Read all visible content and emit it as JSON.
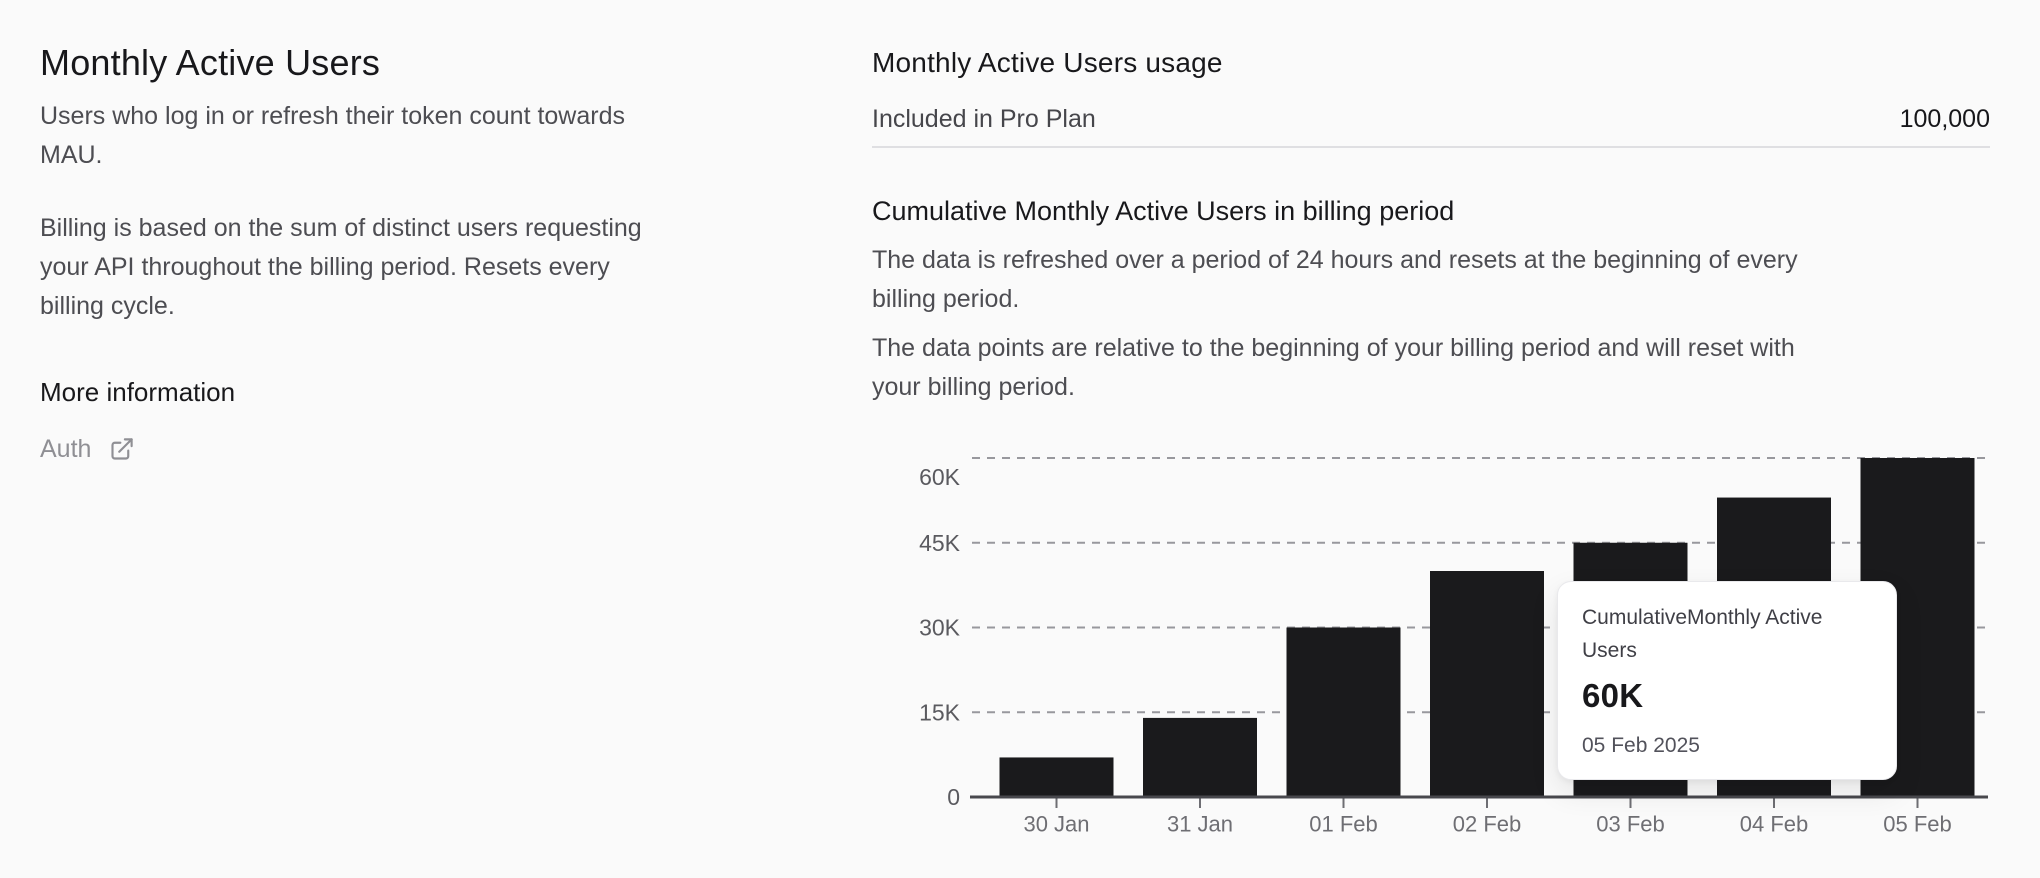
{
  "page": {
    "background_color": "#fafafa"
  },
  "left_panel": {
    "title": "Monthly Active Users",
    "description_1": "Users who log in or refresh their token count towards MAU.",
    "description_2": "Billing is based on the sum of distinct users requesting your API throughout the billing period. Resets every billing cycle.",
    "more_information_title": "More information",
    "auth_link": {
      "label": "Auth",
      "icon": "external-link-icon"
    }
  },
  "usage_panel": {
    "title": "Monthly Active Users usage",
    "plan_row": {
      "label": "Included in Pro Plan",
      "value": "100,000"
    }
  },
  "cumulative_panel": {
    "title": "Cumulative Monthly Active Users in billing period",
    "description_1": "The data is refreshed over a period of 24 hours and resets at the beginning of every billing period.",
    "description_2": "The data points are relative to the beginning of your billing period and will reset with your billing period."
  },
  "chart_data": {
    "type": "bar",
    "title": "Cumulative Monthly Active Users in billing period",
    "series_name": "CumulativeMonthly Active Users",
    "categories": [
      "30 Jan",
      "31 Jan",
      "01 Feb",
      "02 Feb",
      "03 Feb",
      "04 Feb",
      "05 Feb"
    ],
    "values": [
      7000,
      14000,
      30000,
      40000,
      45000,
      53000,
      60000
    ],
    "y_ticks": [
      {
        "value": 0,
        "label": "0"
      },
      {
        "value": 15000,
        "label": "15K"
      },
      {
        "value": 30000,
        "label": "30K"
      },
      {
        "value": 45000,
        "label": "45K"
      },
      {
        "value": 60000,
        "label": "60K"
      }
    ],
    "ylim": [
      0,
      63500
    ],
    "xlabel": "",
    "ylabel": "",
    "grid": "horizontal-dashed",
    "legend": "none",
    "bar_color": "#1a1a1c",
    "gridline_color": "#98989d",
    "axis_line_color": "#48484d",
    "tick_label_color": "#6e6e73",
    "tooltip": {
      "series_label": "CumulativeMonthly Active Users",
      "value": "60K",
      "date": "05 Feb 2025",
      "highlighted_category": "05 Feb"
    }
  }
}
